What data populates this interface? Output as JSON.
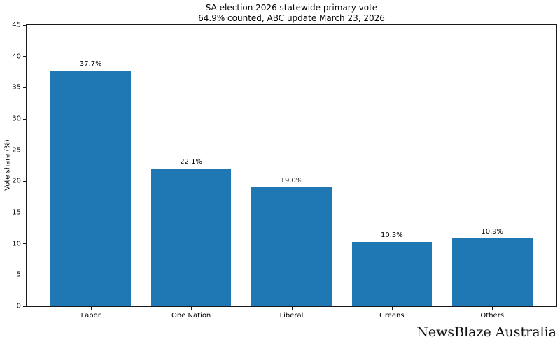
{
  "chart_data": {
    "type": "bar",
    "title": "SA election 2026 statewide primary vote",
    "subtitle": "64.9% counted, ABC update March 23, 2026",
    "categories": [
      "Labor",
      "One Nation",
      "Liberal",
      "Greens",
      "Others"
    ],
    "values": [
      37.7,
      22.1,
      19.0,
      10.3,
      10.9
    ],
    "value_labels": [
      "37.7%",
      "22.1%",
      "19.0%",
      "10.3%",
      "10.9%"
    ],
    "xlabel": "",
    "ylabel": "Vote share (%)",
    "ylim": [
      0,
      45
    ],
    "yticks": [
      0,
      5,
      10,
      15,
      20,
      25,
      30,
      35,
      40,
      45
    ],
    "bar_color": "#1f77b4",
    "axis_color": "#1a1a1a",
    "text_color": "#000000",
    "grid": false,
    "legend": "none"
  },
  "watermark": "NewsBlaze Australia"
}
